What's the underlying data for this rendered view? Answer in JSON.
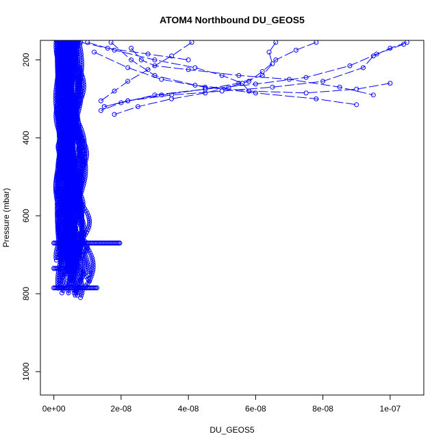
{
  "chart_data": {
    "type": "scatter",
    "title": "ATOM4 Northbound DU_GEOS5",
    "xlabel": "DU_GEOS5",
    "ylabel": "Pressure (mbar)",
    "xlim": [
      -4e-09,
      1.1e-07
    ],
    "ylim": [
      1060,
      150
    ],
    "y_reversed": true,
    "x_ticks": [
      {
        "value": 0,
        "label": "0e+00"
      },
      {
        "value": 2e-08,
        "label": "2e-08"
      },
      {
        "value": 4e-08,
        "label": "4e-08"
      },
      {
        "value": 6e-08,
        "label": "6e-08"
      },
      {
        "value": 8e-08,
        "label": "8e-08"
      },
      {
        "value": 1e-07,
        "label": "1e-07"
      }
    ],
    "y_ticks": [
      {
        "value": 200,
        "label": "200"
      },
      {
        "value": 400,
        "label": "400"
      },
      {
        "value": 600,
        "label": "600"
      },
      {
        "value": 800,
        "label": "800"
      },
      {
        "value": 1000,
        "label": "1000"
      }
    ],
    "grid": false,
    "marker": "open-circle",
    "line_style": "dashed",
    "series_color": "#0000ff",
    "series": [
      {
        "x": [
          1.05e-07,
          1e-07,
          9.5e-08,
          9.2e-08,
          8e-08,
          6.5e-08,
          5e-08,
          3.5e-08,
          2.2e-08,
          1.5e-08
        ],
        "y": [
          155,
          170,
          190,
          220,
          255,
          270,
          280,
          290,
          305,
          320
        ]
      },
      {
        "x": [
          1.04e-07,
          9.6e-08,
          8.8e-08,
          7.5e-08,
          6e-08,
          4.5e-08,
          3e-08,
          2e-08,
          1.4e-08
        ],
        "y": [
          160,
          185,
          215,
          245,
          262,
          275,
          290,
          310,
          330
        ]
      },
      {
        "x": [
          7.8e-08,
          7.2e-08,
          6.6e-08,
          6.2e-08,
          5.8e-08,
          5.2e-08,
          4.5e-08,
          3.5e-08,
          2.5e-08,
          1.8e-08
        ],
        "y": [
          155,
          175,
          200,
          230,
          255,
          270,
          285,
          300,
          320,
          340
        ]
      },
      {
        "x": [
          6.6e-08,
          6.4e-08,
          6.5e-08,
          6.2e-08,
          5.5e-08,
          4.5e-08,
          3.2e-08,
          2.2e-08,
          1.5e-08
        ],
        "y": [
          155,
          180,
          210,
          240,
          260,
          275,
          290,
          305,
          320
        ]
      },
      {
        "x": [
          4.1e-08,
          3.5e-08,
          2.8e-08,
          2.2e-08,
          1.8e-08,
          1.4e-08
        ],
        "y": [
          155,
          190,
          225,
          255,
          280,
          305
        ]
      },
      {
        "x": [
          2.3e-08,
          2.6e-08,
          3e-08,
          4e-08,
          5.5e-08,
          7e-08,
          8.5e-08,
          9.5e-08
        ],
        "y": [
          170,
          200,
          215,
          225,
          240,
          250,
          270,
          290
        ]
      },
      {
        "x": [
          1.7e-08,
          2.3e-08,
          3e-08,
          4.2e-08,
          5.8e-08,
          7.5e-08,
          9e-08,
          1e-07
        ],
        "y": [
          155,
          200,
          240,
          265,
          280,
          285,
          275,
          260
        ]
      },
      {
        "x": [
          1.2e-08,
          2.2e-08,
          3.2e-08,
          4.5e-08,
          6e-08,
          7.8e-08,
          9e-08
        ],
        "y": [
          180,
          220,
          250,
          270,
          285,
          300,
          315
        ]
      },
      {
        "x": [
          1e-08,
          1.8e-08,
          3e-08,
          4.2e-08,
          5e-08,
          5.6e-08,
          5.8e-08
        ],
        "y": [
          155,
          175,
          200,
          220,
          240,
          260,
          280
        ]
      },
      {
        "x": [
          8e-09,
          1.6e-08,
          2.8e-08,
          4e-08
        ],
        "y": [
          155,
          170,
          185,
          200
        ]
      }
    ],
    "dense_profiles_note_values": {
      "x_range": [
        0,
        2e-08
      ],
      "y_range": [
        150,
        820
      ],
      "highlight_levels": [
        670,
        735,
        785
      ]
    }
  }
}
